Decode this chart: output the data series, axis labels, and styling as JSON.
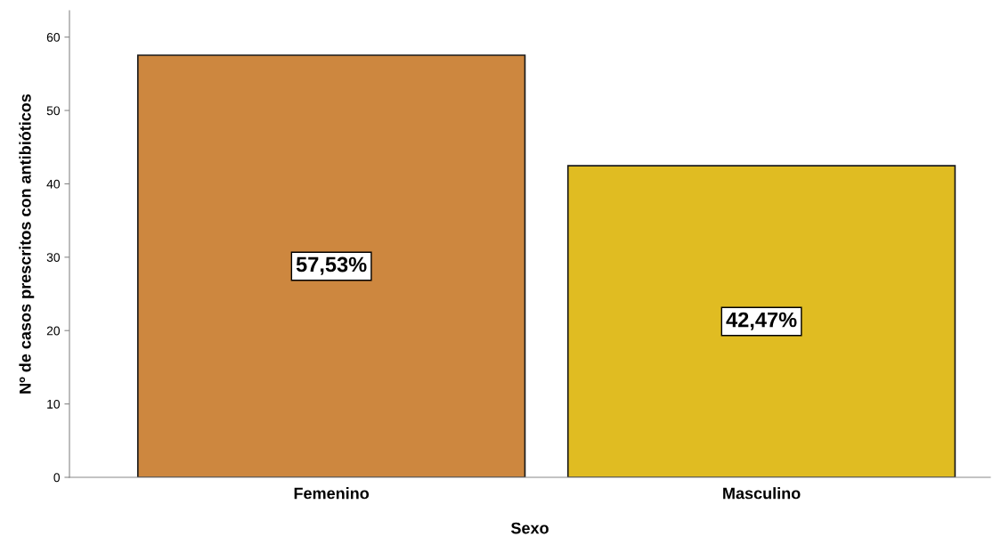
{
  "chart_data": {
    "type": "bar",
    "xlabel": "Sexo",
    "ylabel": "Nº de casos prescritos con antibióticos",
    "categories": [
      "Femenino",
      "Masculino"
    ],
    "values": [
      57.53,
      42.47
    ],
    "colors": [
      "#cd873f",
      "#e0bc22"
    ],
    "value_labels": [
      "57,53%",
      "42,47%"
    ],
    "ylim": [
      0,
      63.6
    ],
    "yticks": [
      0,
      10,
      20,
      30,
      40,
      50,
      60
    ],
    "grid": false,
    "legend": false
  }
}
